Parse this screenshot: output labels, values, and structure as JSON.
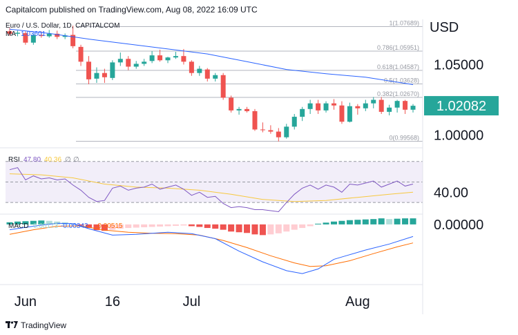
{
  "header": {
    "text": "Capitalcom published on TradingView.com, Aug 08, 2022 16:09 UTC"
  },
  "footer": {
    "brand": "TradingView",
    "logo": "tradingview-logo-icon"
  },
  "colors": {
    "up": "#26a69a",
    "down": "#ef5350",
    "ma": "#2962ff",
    "rsi": "#7e57c2",
    "rsi_ma": "#f7c83e",
    "macd": "#2962ff",
    "signal": "#ff6d00",
    "hist_up_strong": "#26a69a",
    "hist_up_weak": "#b2dfdb",
    "hist_down_strong": "#ef5350",
    "hist_down_weak": "#ffcdd2",
    "price_badge": "#26a69a",
    "fib": "#b2b5be",
    "rsi_band": "#7e57c2"
  },
  "chart_data": [
    {
      "type": "candlestick",
      "title": "Euro / U.S. Dollar, 1D, CAPITALCOM",
      "currency": "USD",
      "ma_legend": "MA",
      "ma_value": "1.03601",
      "last_price": "1.02082",
      "y_ticks": [
        "1.05000",
        "1.00000"
      ],
      "y_tick_values": [
        1.05,
        1.0
      ],
      "ylim": [
        0.992,
        1.082
      ],
      "fib_levels": [
        {
          "label": "1(1.07689)",
          "value": 1.07689
        },
        {
          "label": "0.786(1.05951)",
          "value": 1.05951
        },
        {
          "label": "0.618(1.04587)",
          "value": 1.04587
        },
        {
          "label": "0.5(1.03628)",
          "value": 1.03628
        },
        {
          "label": "0.382(1.02670)",
          "value": 1.0267
        },
        {
          "label": "0(0.99568)",
          "value": 0.99568
        }
      ],
      "x_ticks": [
        {
          "label": "Jun",
          "index": 2
        },
        {
          "label": "16",
          "index": 13
        },
        {
          "label": "Jul",
          "index": 23
        },
        {
          "label": "Aug",
          "index": 44
        }
      ],
      "candles": [
        [
          1.0735,
          1.076,
          1.0705,
          1.0718
        ],
        [
          1.0718,
          1.074,
          1.07,
          1.0725
        ],
        [
          1.0722,
          1.0735,
          1.064,
          1.0655
        ],
        [
          1.0655,
          1.072,
          1.064,
          1.071
        ],
        [
          1.071,
          1.0735,
          1.069,
          1.0702
        ],
        [
          1.07,
          1.0745,
          1.069,
          1.0718
        ],
        [
          1.0718,
          1.074,
          1.068,
          1.0696
        ],
        [
          1.0696,
          1.072,
          1.068,
          1.0706
        ],
        [
          1.071,
          1.0775,
          1.0615,
          1.063
        ],
        [
          1.0625,
          1.064,
          1.049,
          1.052
        ],
        [
          1.052,
          1.056,
          1.036,
          1.0395
        ],
        [
          1.04,
          1.048,
          1.037,
          1.044
        ],
        [
          1.044,
          1.047,
          1.037,
          1.041
        ],
        [
          1.0405,
          1.053,
          1.039,
          1.0515
        ],
        [
          1.0515,
          1.0585,
          1.049,
          1.054
        ],
        [
          1.054,
          1.056,
          1.046,
          1.0485
        ],
        [
          1.0485,
          1.0525,
          1.047,
          1.0505
        ],
        [
          1.0505,
          1.054,
          1.049,
          1.052
        ],
        [
          1.0525,
          1.0595,
          1.051,
          1.0565
        ],
        [
          1.0565,
          1.0605,
          1.052,
          1.053
        ],
        [
          1.053,
          1.0555,
          1.051,
          1.055
        ],
        [
          1.055,
          1.059,
          1.054,
          1.056
        ],
        [
          1.056,
          1.061,
          1.05,
          1.052
        ],
        [
          1.052,
          1.053,
          1.042,
          1.044
        ],
        [
          1.044,
          1.049,
          1.042,
          1.047
        ],
        [
          1.0465,
          1.0475,
          1.038,
          1.04
        ],
        [
          1.04,
          1.044,
          1.038,
          1.0425
        ],
        [
          1.0425,
          1.044,
          1.025,
          1.0265
        ],
        [
          1.0265,
          1.028,
          1.016,
          1.0175
        ],
        [
          1.0175,
          1.02,
          1.0145,
          1.0185
        ],
        [
          1.0185,
          1.02,
          1.016,
          1.017
        ],
        [
          1.017,
          1.0185,
          1.003,
          1.004
        ],
        [
          1.004,
          1.009,
          1.002,
          1.0035
        ],
        [
          1.0035,
          1.007,
          1.001,
          1.0025
        ],
        [
          1.0025,
          1.005,
          0.9955,
          0.9985
        ],
        [
          0.9985,
          1.008,
          0.9975,
          1.006
        ],
        [
          1.006,
          1.015,
          1.004,
          1.013
        ],
        [
          1.013,
          1.02,
          1.01,
          1.0185
        ],
        [
          1.0185,
          1.025,
          1.015,
          1.0225
        ],
        [
          1.0225,
          1.025,
          1.015,
          1.0175
        ],
        [
          1.0175,
          1.024,
          1.016,
          1.0225
        ],
        [
          1.0225,
          1.0255,
          1.018,
          1.021
        ],
        [
          1.021,
          1.024,
          1.008,
          1.0095
        ],
        [
          1.0095,
          1.023,
          1.009,
          1.0205
        ],
        [
          1.0205,
          1.022,
          1.0145,
          1.019
        ],
        [
          1.019,
          1.025,
          1.017,
          1.0225
        ],
        [
          1.0225,
          1.027,
          1.019,
          1.025
        ],
        [
          1.025,
          1.027,
          1.015,
          1.0165
        ],
        [
          1.0165,
          1.0215,
          1.014,
          1.0195
        ],
        [
          1.0195,
          1.025,
          1.016,
          1.0242
        ],
        [
          1.0242,
          1.025,
          1.015,
          1.018
        ],
        [
          1.018,
          1.022,
          1.016,
          1.0208
        ]
      ],
      "ma_line": [
        [
          0,
          1.075
        ],
        [
          5,
          1.072
        ],
        [
          10,
          1.068
        ],
        [
          15,
          1.0645
        ],
        [
          20,
          1.061
        ],
        [
          25,
          1.0575
        ],
        [
          30,
          1.052
        ],
        [
          35,
          1.0465
        ],
        [
          40,
          1.0435
        ],
        [
          45,
          1.041
        ],
        [
          51,
          1.0358
        ]
      ]
    },
    {
      "type": "line",
      "title": "RSI",
      "rsi_value": "47.80",
      "rsi_ma_value": "40.36",
      "legend_extras": [
        "∅",
        "∅"
      ],
      "y_ticks": [
        "40.00"
      ],
      "y_tick_values": [
        40
      ],
      "ylim": [
        20,
        82
      ],
      "band_upper": 70,
      "band_mid": 50,
      "band_lower": 30,
      "rsi": [
        [
          0,
          62
        ],
        [
          1,
          64
        ],
        [
          2,
          52
        ],
        [
          3,
          56
        ],
        [
          4,
          53
        ],
        [
          5,
          54
        ],
        [
          6,
          52
        ],
        [
          7,
          53
        ],
        [
          8,
          47
        ],
        [
          9,
          42
        ],
        [
          10,
          35
        ],
        [
          11,
          31
        ],
        [
          12,
          32
        ],
        [
          13,
          44
        ],
        [
          14,
          46
        ],
        [
          15,
          42
        ],
        [
          16,
          44
        ],
        [
          17,
          45
        ],
        [
          18,
          48
        ],
        [
          19,
          43
        ],
        [
          20,
          45
        ],
        [
          21,
          47
        ],
        [
          22,
          43
        ],
        [
          23,
          37
        ],
        [
          24,
          40
        ],
        [
          25,
          35
        ],
        [
          26,
          36
        ],
        [
          27,
          29
        ],
        [
          28,
          25
        ],
        [
          29,
          26
        ],
        [
          30,
          25
        ],
        [
          31,
          23
        ],
        [
          32,
          23
        ],
        [
          33,
          22
        ],
        [
          34,
          21
        ],
        [
          35,
          30
        ],
        [
          36,
          38
        ],
        [
          37,
          44
        ],
        [
          38,
          47
        ],
        [
          39,
          43
        ],
        [
          40,
          47
        ],
        [
          41,
          45
        ],
        [
          42,
          40
        ],
        [
          43,
          48
        ],
        [
          44,
          47
        ],
        [
          45,
          49
        ],
        [
          46,
          51
        ],
        [
          47,
          45
        ],
        [
          48,
          48
        ],
        [
          49,
          51
        ],
        [
          50,
          46
        ],
        [
          51,
          48
        ]
      ],
      "rsi_ma": [
        [
          0,
          58
        ],
        [
          4,
          57
        ],
        [
          8,
          54
        ],
        [
          12,
          48
        ],
        [
          16,
          45
        ],
        [
          20,
          44
        ],
        [
          24,
          42
        ],
        [
          28,
          38
        ],
        [
          32,
          33
        ],
        [
          36,
          31
        ],
        [
          40,
          32
        ],
        [
          44,
          35
        ],
        [
          48,
          38
        ],
        [
          51,
          40
        ]
      ]
    },
    {
      "type": "bar",
      "title": "MACD",
      "hist_value": "0.00173",
      "macd_value": "-0.00342",
      "signal_value": "-0.00515",
      "y_ticks": [
        "0.00000"
      ],
      "y_tick_values": [
        0
      ],
      "ylim": [
        -0.0165,
        0.0025
      ],
      "histogram": [
        0.0006,
        0.0008,
        0.0009,
        0.001,
        0.0011,
        0.001,
        0.0008,
        0.0006,
        0.0003,
        -0.0003,
        -0.001,
        -0.0016,
        -0.0018,
        -0.0015,
        -0.0012,
        -0.001,
        -0.0009,
        -0.0008,
        -0.0007,
        -0.0006,
        -0.0005,
        -0.0004,
        -0.0003,
        -0.0005,
        -0.0007,
        -0.001,
        -0.0012,
        -0.0015,
        -0.002,
        -0.0022,
        -0.0024,
        -0.0028,
        -0.003,
        -0.0028,
        -0.0025,
        -0.002,
        -0.0015,
        -0.001,
        -0.0005,
        0.0002,
        0.0005,
        0.0008,
        0.001,
        0.0012,
        0.0013,
        0.0014,
        0.0015,
        0.0017,
        0.0015,
        0.0016,
        0.0017,
        0.0017
      ],
      "macd": [
        [
          0,
          -0.0015
        ],
        [
          3,
          -0.0005
        ],
        [
          6,
          0.0003
        ],
        [
          8,
          0.0002
        ],
        [
          10,
          -0.0012
        ],
        [
          13,
          -0.003
        ],
        [
          16,
          -0.0028
        ],
        [
          20,
          -0.0022
        ],
        [
          23,
          -0.0026
        ],
        [
          26,
          -0.004
        ],
        [
          29,
          -0.0075
        ],
        [
          32,
          -0.0105
        ],
        [
          35,
          -0.013
        ],
        [
          37,
          -0.0138
        ],
        [
          39,
          -0.0125
        ],
        [
          41,
          -0.0098
        ],
        [
          43,
          -0.0085
        ],
        [
          45,
          -0.0072
        ],
        [
          48,
          -0.0055
        ],
        [
          51,
          -0.0034
        ]
      ],
      "signal": [
        [
          0,
          -0.0028
        ],
        [
          3,
          -0.0015
        ],
        [
          6,
          -0.0005
        ],
        [
          9,
          -0.0004
        ],
        [
          12,
          -0.0016
        ],
        [
          15,
          -0.0022
        ],
        [
          18,
          -0.0025
        ],
        [
          21,
          -0.0026
        ],
        [
          24,
          -0.003
        ],
        [
          27,
          -0.0045
        ],
        [
          30,
          -0.0065
        ],
        [
          33,
          -0.0088
        ],
        [
          36,
          -0.0108
        ],
        [
          38,
          -0.0118
        ],
        [
          40,
          -0.0116
        ],
        [
          43,
          -0.0102
        ],
        [
          46,
          -0.0082
        ],
        [
          49,
          -0.0063
        ],
        [
          51,
          -0.0052
        ]
      ]
    }
  ]
}
